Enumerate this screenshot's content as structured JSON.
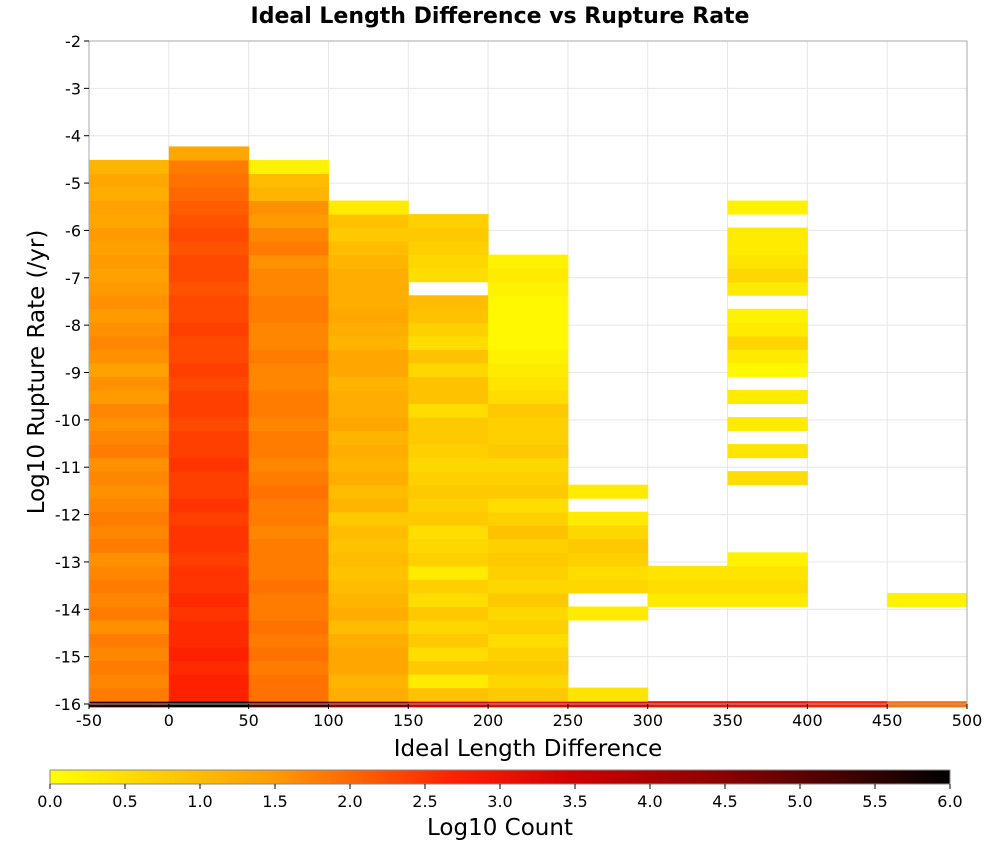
{
  "chart_data": {
    "type": "heatmap",
    "title": "Ideal Length Difference vs Rupture Rate",
    "xlabel": "Ideal Length Difference",
    "ylabel": "Log10 Rupture Rate (/yr)",
    "colorbar_label": "Log10 Count",
    "xlim": [
      -50,
      500
    ],
    "ylim": [
      -16,
      -2
    ],
    "clim": [
      0.0,
      6.0
    ],
    "grid": true,
    "colormap": "hot_reversed",
    "x_ticks": [
      -50,
      0,
      50,
      100,
      150,
      200,
      250,
      300,
      350,
      400,
      450,
      500
    ],
    "y_ticks": [
      -2,
      -3,
      -4,
      -5,
      -6,
      -7,
      -8,
      -9,
      -10,
      -11,
      -12,
      -13,
      -14,
      -15,
      -16
    ],
    "colorbar_ticks": [
      "0.0",
      "0.5",
      "1.0",
      "1.5",
      "2.0",
      "2.5",
      "3.0",
      "3.5",
      "4.0",
      "4.5",
      "5.0",
      "5.5",
      "6.0"
    ],
    "x_bin_edges": [
      -50,
      0,
      50,
      100,
      150,
      200,
      250,
      300,
      350,
      400,
      450,
      500
    ],
    "y_bin_size": 0.2857,
    "y_bin_origin": -16.0,
    "column_cells": [
      {
        "x_bin": 0,
        "from_bin": 0,
        "to_bin": 0,
        "values": [
          5.5
        ]
      },
      {
        "x_bin": 0,
        "from_bin": 1,
        "to_bin": 40,
        "values": [
          1.8,
          1.7,
          1.8,
          1.7,
          1.8,
          1.6,
          1.8,
          1.7,
          1.8,
          1.7,
          1.6,
          1.8,
          1.7,
          1.8,
          1.7,
          1.6,
          1.7,
          1.6,
          1.8,
          1.7,
          1.6,
          1.7,
          1.5,
          1.6,
          1.4,
          1.6,
          1.7,
          1.6,
          1.5,
          1.6,
          1.5,
          1.4,
          1.5,
          1.4,
          1.5,
          1.3,
          1.4,
          1.2,
          1.3,
          1.1
        ]
      },
      {
        "x_bin": 1,
        "from_bin": 0,
        "to_bin": 0,
        "values": [
          6.0
        ]
      },
      {
        "x_bin": 1,
        "from_bin": 1,
        "to_bin": 41,
        "values": [
          2.7,
          2.7,
          2.6,
          2.7,
          2.6,
          2.6,
          2.5,
          2.6,
          2.5,
          2.5,
          2.4,
          2.5,
          2.5,
          2.4,
          2.5,
          2.4,
          2.4,
          2.5,
          2.4,
          2.4,
          2.3,
          2.4,
          2.4,
          2.3,
          2.4,
          2.3,
          2.3,
          2.4,
          2.3,
          2.3,
          2.2,
          2.3,
          2.3,
          2.2,
          2.3,
          2.2,
          2.1,
          2.0,
          1.9,
          1.8,
          1.3
        ]
      },
      {
        "x_bin": 2,
        "from_bin": 0,
        "to_bin": 0,
        "values": [
          5.2
        ]
      },
      {
        "x_bin": 2,
        "from_bin": 1,
        "to_bin": 40,
        "values": [
          1.9,
          1.9,
          1.8,
          1.9,
          1.8,
          1.9,
          1.8,
          1.8,
          1.9,
          1.8,
          1.8,
          1.8,
          1.7,
          1.8,
          1.8,
          1.9,
          1.8,
          1.7,
          1.8,
          1.8,
          1.7,
          1.8,
          1.8,
          1.7,
          1.7,
          1.8,
          1.7,
          1.7,
          1.8,
          1.8,
          1.7,
          1.7,
          1.6,
          1.8,
          1.7,
          1.5,
          1.6,
          1.1,
          1.0,
          0.2
        ]
      },
      {
        "x_bin": 3,
        "from_bin": 0,
        "to_bin": 0,
        "values": [
          4.5
        ]
      },
      {
        "x_bin": 3,
        "from_bin": 1,
        "to_bin": 37,
        "values": [
          1.2,
          1.1,
          1.3,
          1.3,
          1.2,
          1.0,
          1.2,
          1.1,
          1.0,
          0.9,
          1.0,
          0.9,
          1.0,
          0.8,
          1.1,
          1.0,
          1.2,
          1.1,
          1.2,
          1.1,
          1.3,
          1.2,
          1.2,
          1.1,
          1.3,
          1.3,
          1.1,
          1.2,
          1.3,
          1.2,
          1.2,
          1.2,
          1.1,
          1.0,
          0.8,
          0.9,
          0.3
        ]
      },
      {
        "x_bin": 4,
        "from_bin": 0,
        "to_bin": 0,
        "values": [
          3.5
        ]
      },
      {
        "x_bin": 4,
        "from_bin": 1,
        "to_bin": 16,
        "values": [
          0.9,
          0.3,
          0.8,
          0.5,
          0.8,
          0.6,
          0.8,
          0.5,
          0.7,
          0.3,
          0.7,
          0.6,
          0.5,
          0.8,
          0.7,
          0.8
        ]
      },
      {
        "x_bin": 4,
        "from_bin": 17,
        "to_bin": 20,
        "values": [
          0.7,
          0.6,
          0.7,
          0.8
        ]
      },
      {
        "x_bin": 4,
        "from_bin": 21,
        "to_bin": 24,
        "values": [
          0.8,
          0.5,
          0.9,
          0.9
        ]
      },
      {
        "x_bin": 4,
        "from_bin": 25,
        "to_bin": 30,
        "values": [
          0.6,
          0.9,
          0.5,
          0.7,
          0.9,
          1.0
        ]
      },
      {
        "x_bin": 4,
        "from_bin": 32,
        "to_bin": 36,
        "values": [
          0.5,
          0.6,
          0.7,
          0.8,
          0.7
        ]
      },
      {
        "x_bin": 5,
        "from_bin": 0,
        "to_bin": 0,
        "values": [
          3.2
        ]
      },
      {
        "x_bin": 5,
        "from_bin": 1,
        "to_bin": 30,
        "values": [
          0.8,
          0.6,
          0.8,
          0.7,
          0.5,
          0.7,
          0.6,
          0.8,
          0.6,
          0.7,
          0.8,
          0.7,
          0.9,
          0.7,
          0.5,
          0.8,
          0.7,
          0.6,
          0.8,
          0.7,
          0.7,
          0.8,
          0.5,
          0.4,
          0.3,
          0.2,
          0.1,
          0.1,
          0.1,
          0.1
        ]
      },
      {
        "x_bin": 5,
        "from_bin": 31,
        "to_bin": 33,
        "values": [
          0.2,
          0.3,
          0.2
        ]
      },
      {
        "x_bin": 6,
        "from_bin": 0,
        "to_bin": 0,
        "values": [
          3.3
        ]
      },
      {
        "x_bin": 6,
        "from_bin": 1,
        "to_bin": 1,
        "values": [
          0.4
        ]
      },
      {
        "x_bin": 6,
        "from_bin": 7,
        "to_bin": 7,
        "values": [
          0.3
        ]
      },
      {
        "x_bin": 6,
        "from_bin": 9,
        "to_bin": 10,
        "values": [
          0.6,
          0.5
        ]
      },
      {
        "x_bin": 6,
        "from_bin": 11,
        "to_bin": 14,
        "values": [
          0.7,
          0.8,
          0.6,
          0.3
        ]
      },
      {
        "x_bin": 6,
        "from_bin": 16,
        "to_bin": 16,
        "values": [
          0.3
        ]
      },
      {
        "x_bin": 7,
        "from_bin": 0,
        "to_bin": 0,
        "values": [
          3.0
        ]
      },
      {
        "x_bin": 7,
        "from_bin": 8,
        "to_bin": 10,
        "values": [
          0.3,
          0.5,
          0.4
        ]
      },
      {
        "x_bin": 8,
        "from_bin": 0,
        "to_bin": 0,
        "values": [
          3.0
        ]
      },
      {
        "x_bin": 8,
        "from_bin": 8,
        "to_bin": 10,
        "values": [
          0.3,
          0.5,
          0.4
        ]
      },
      {
        "x_bin": 8,
        "from_bin": 11,
        "to_bin": 11,
        "values": [
          0.2
        ]
      },
      {
        "x_bin": 8,
        "from_bin": 17,
        "to_bin": 17,
        "values": [
          0.5
        ]
      },
      {
        "x_bin": 8,
        "from_bin": 19,
        "to_bin": 19,
        "values": [
          0.4
        ]
      },
      {
        "x_bin": 8,
        "from_bin": 21,
        "to_bin": 21,
        "values": [
          0.3
        ]
      },
      {
        "x_bin": 8,
        "from_bin": 23,
        "to_bin": 23,
        "values": [
          0.3
        ]
      },
      {
        "x_bin": 8,
        "from_bin": 25,
        "to_bin": 25,
        "values": [
          0.1
        ]
      },
      {
        "x_bin": 8,
        "from_bin": 26,
        "to_bin": 28,
        "values": [
          0.3,
          0.6,
          0.3
        ]
      },
      {
        "x_bin": 8,
        "from_bin": 29,
        "to_bin": 29,
        "values": [
          0.2
        ]
      },
      {
        "x_bin": 8,
        "from_bin": 31,
        "to_bin": 31,
        "values": [
          0.3
        ]
      },
      {
        "x_bin": 8,
        "from_bin": 32,
        "to_bin": 32,
        "values": [
          0.6
        ]
      },
      {
        "x_bin": 8,
        "from_bin": 33,
        "to_bin": 35,
        "values": [
          0.4,
          0.3,
          0.3
        ]
      },
      {
        "x_bin": 8,
        "from_bin": 37,
        "to_bin": 37,
        "values": [
          0.2
        ]
      },
      {
        "x_bin": 9,
        "from_bin": 0,
        "to_bin": 0,
        "values": [
          2.7
        ]
      },
      {
        "x_bin": 10,
        "from_bin": 0,
        "to_bin": 0,
        "values": [
          1.9
        ]
      },
      {
        "x_bin": 10,
        "from_bin": 8,
        "to_bin": 8,
        "values": [
          0.2
        ]
      }
    ]
  }
}
